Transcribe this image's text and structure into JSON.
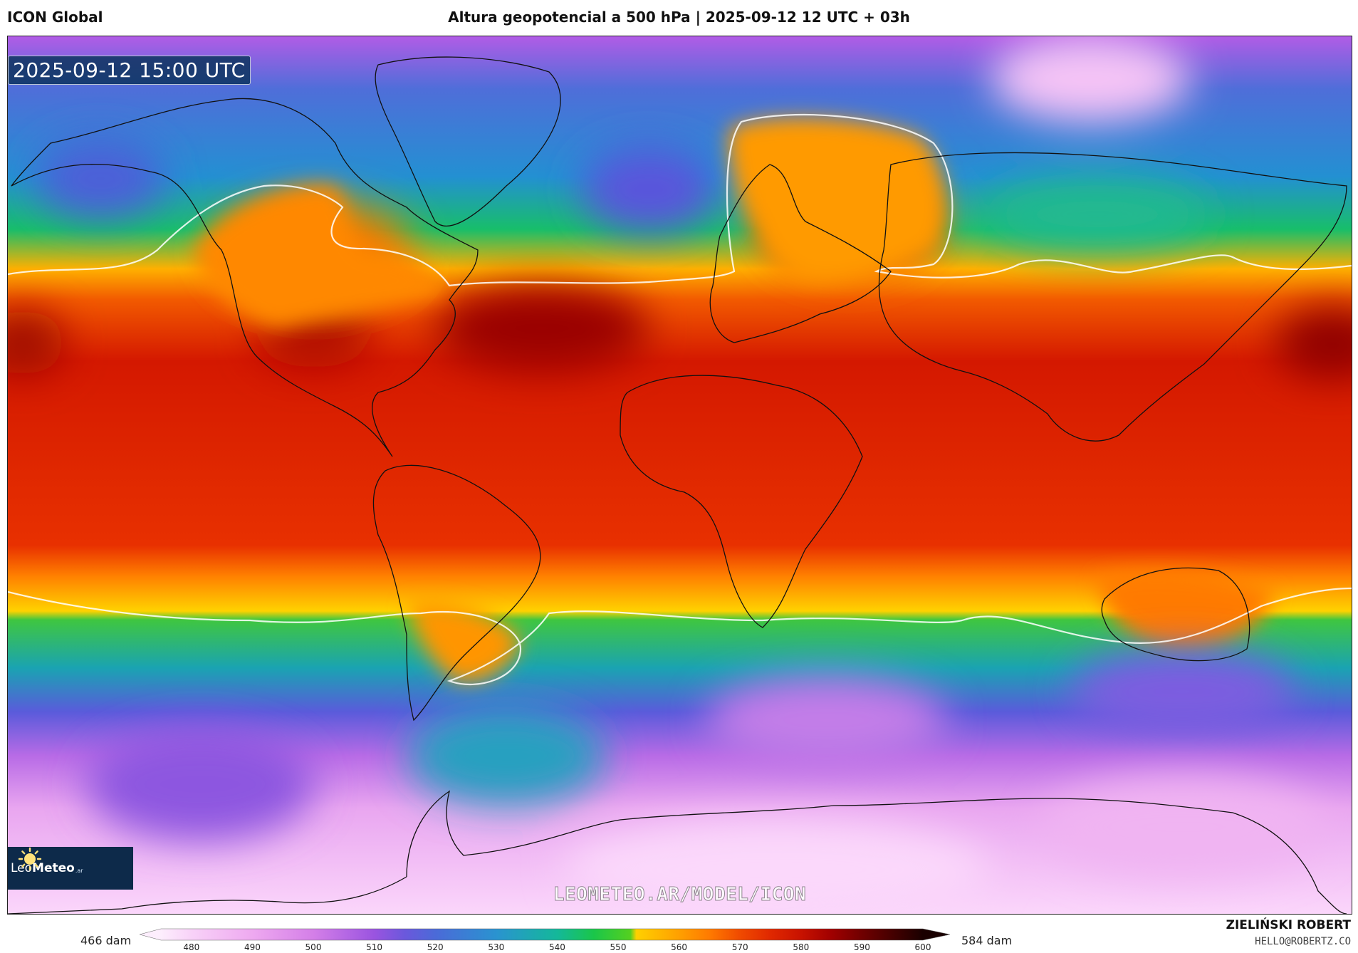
{
  "header": {
    "model_name": "ICON Global",
    "title": "Altura geopotencial a 500 hPa | 2025-09-12 12 UTC + 03h"
  },
  "map": {
    "valid_time": "2025-09-12 15:00 UTC",
    "field": "geopotential height 500 hPa",
    "highlighted_contour_dam": 552,
    "watermark": "LEOMETEO.AR/MODEL/ICON",
    "logo": {
      "name_light": "Leo",
      "name_bold": "Meteo",
      "suffix": ".ar",
      "icon": "sun-icon"
    }
  },
  "legend": {
    "range_min_label": "466 dam",
    "range_max_label": "584 dam",
    "ticks": [
      "480",
      "490",
      "500",
      "510",
      "520",
      "530",
      "540",
      "550",
      "560",
      "570",
      "580",
      "590",
      "600"
    ],
    "color_stops": [
      {
        "value": 475,
        "color": "#fdeefd"
      },
      {
        "value": 480,
        "color": "#f8d2f8"
      },
      {
        "value": 490,
        "color": "#eea9f0"
      },
      {
        "value": 500,
        "color": "#d47fe8"
      },
      {
        "value": 510,
        "color": "#9a54e0"
      },
      {
        "value": 515,
        "color": "#6b58dc"
      },
      {
        "value": 520,
        "color": "#4b6ad8"
      },
      {
        "value": 530,
        "color": "#2a93d0"
      },
      {
        "value": 540,
        "color": "#14b89a"
      },
      {
        "value": 546,
        "color": "#1ac64a"
      },
      {
        "value": 552,
        "color": "#54d020"
      },
      {
        "value": 553,
        "color": "#ffd000"
      },
      {
        "value": 560,
        "color": "#ffa000"
      },
      {
        "value": 565,
        "color": "#ff7a00"
      },
      {
        "value": 570,
        "color": "#f04a00"
      },
      {
        "value": 575,
        "color": "#e02800"
      },
      {
        "value": 580,
        "color": "#c81200"
      },
      {
        "value": 585,
        "color": "#a00000"
      },
      {
        "value": 590,
        "color": "#700000"
      },
      {
        "value": 600,
        "color": "#1a0000"
      }
    ]
  },
  "credits": {
    "author": "ZIELIŃSKI ROBERT",
    "email": "HELLO@ROBERTZ.CO"
  }
}
